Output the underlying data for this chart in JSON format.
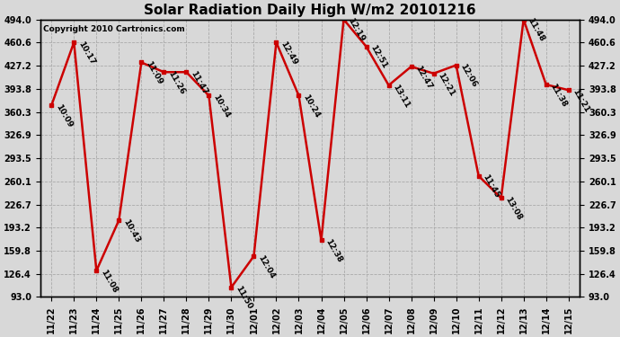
{
  "title": "Solar Radiation Daily High W/m2 20101216",
  "copyright": "Copyright 2010 Cartronics.com",
  "categories": [
    "11/22",
    "11/23",
    "11/24",
    "11/25",
    "11/26",
    "11/27",
    "11/28",
    "11/29",
    "11/30",
    "12/01",
    "12/02",
    "12/03",
    "12/04",
    "12/05",
    "12/06",
    "12/07",
    "12/08",
    "12/09",
    "12/10",
    "12/11",
    "12/12",
    "12/13",
    "12/14",
    "12/15"
  ],
  "values": [
    370,
    461,
    131,
    204,
    432,
    418,
    418,
    384,
    107,
    152,
    461,
    384,
    175,
    494,
    455,
    399,
    426,
    416,
    428,
    268,
    236,
    494,
    400,
    392
  ],
  "times": [
    "10:09",
    "10:17",
    "11:08",
    "10:43",
    "11:09",
    "11:26",
    "11:47",
    "10:34",
    "11:50",
    "12:04",
    "12:49",
    "10:24",
    "12:38",
    "12:19",
    "12:51",
    "13:11",
    "12:47",
    "12:21",
    "12:06",
    "11:45",
    "13:08",
    "11:48",
    "11:38",
    "11:21"
  ],
  "ylim_min": 93.0,
  "ylim_max": 494.0,
  "yticks": [
    93.0,
    126.4,
    159.8,
    193.2,
    226.7,
    260.1,
    293.5,
    326.9,
    360.3,
    393.8,
    427.2,
    460.6,
    494.0
  ],
  "line_color": "#cc0000",
  "marker_color": "#cc0000",
  "bg_color": "#d8d8d8",
  "plot_bg_color": "#d8d8d8",
  "grid_color": "#aaaaaa",
  "title_fontsize": 11,
  "label_fontsize": 6.5,
  "tick_fontsize": 7,
  "copyright_fontsize": 6.5
}
